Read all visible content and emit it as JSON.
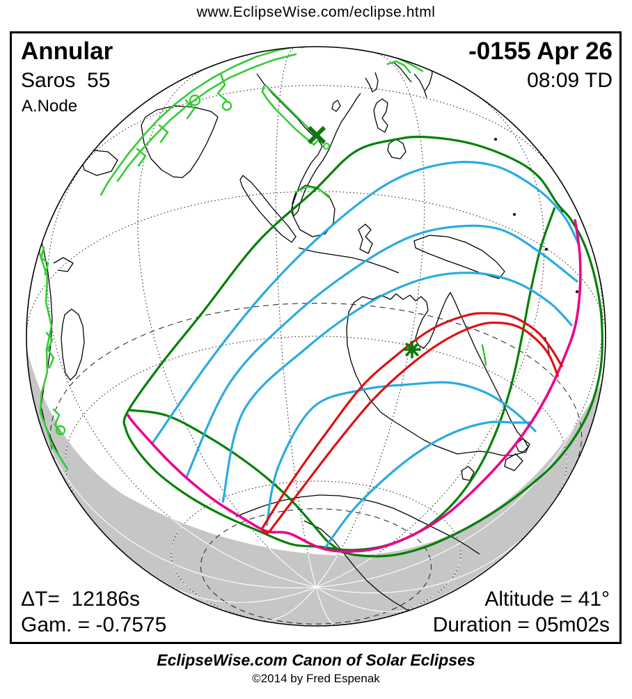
{
  "header": {
    "url": "www.EclipseWise.com/eclipse.html"
  },
  "panel": {
    "type": "Annular",
    "saros": "Saros  55",
    "node": "A.Node",
    "date": "-0155 Apr 26",
    "time": "08:09 TD",
    "delta_t": "ΔT=  12186s",
    "gamma": "Gam. = -0.7575",
    "altitude": "Altitude = 41°",
    "duration": "Duration = 05m02s"
  },
  "footer": {
    "title": "EclipseWise.com Canon of Solar Eclipses",
    "copyright": "©2014 by Fred Espenak"
  },
  "legend_colors": {
    "penumbral_limit_green": "#008000",
    "coast_highlight_green": "#33cc33",
    "magnitude_line_blue": "#29abe2",
    "central_path_red": "#dd1111",
    "sunrise_sunset_magenta": "#ec008c",
    "night_shading_gray": "#c6c6c6",
    "coastline_black": "#000000",
    "graticule_black": "#1a1a1a"
  },
  "markers": {
    "greatest_eclipse": {
      "symbol": "asterisk",
      "color": "#0b7a0b"
    },
    "subsolar_point": {
      "symbol": "x-cross",
      "color": "#0b7a0b"
    }
  }
}
